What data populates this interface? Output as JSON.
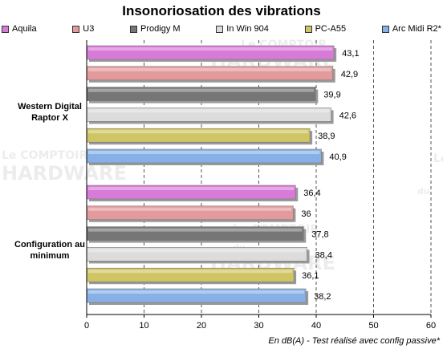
{
  "chart_data": {
    "type": "bar",
    "orientation": "horizontal",
    "title": "Insonoriosation des vibrations",
    "groups": [
      "Western Digital Raptor X",
      "Configuration au minimum"
    ],
    "series": [
      {
        "name": "Aquila",
        "color": "#d77ad8",
        "values": [
          43.1,
          36.4
        ],
        "labels": [
          "43,1",
          "36,4"
        ]
      },
      {
        "name": "U3",
        "color": "#e39a9c",
        "values": [
          42.9,
          36
        ],
        "labels": [
          "42,9",
          "36"
        ]
      },
      {
        "name": "Prodigy M",
        "color": "#767676",
        "values": [
          39.9,
          37.8
        ],
        "labels": [
          "39,9",
          "37,8"
        ]
      },
      {
        "name": "In Win 904",
        "color": "#dcdcdc",
        "values": [
          42.6,
          38.4
        ],
        "labels": [
          "42,6",
          "38,4"
        ]
      },
      {
        "name": "PC-A55",
        "color": "#cfc564",
        "values": [
          38.9,
          36.1
        ],
        "labels": [
          "38,9",
          "36,1"
        ]
      },
      {
        "name": "Arc Midi R2*",
        "color": "#87b1e6",
        "values": [
          40.9,
          38.2
        ],
        "labels": [
          "40,9",
          "38,2"
        ]
      }
    ],
    "xlim": [
      0,
      60
    ],
    "xticks": [
      0,
      10,
      20,
      30,
      40,
      50,
      60
    ],
    "xlabel": "En dB(A) - Test réalisé avec config passive*",
    "grid": "vertical dashed",
    "legend": "top"
  },
  "watermark": [
    "Le COMPTOIR du HARDWARE"
  ]
}
